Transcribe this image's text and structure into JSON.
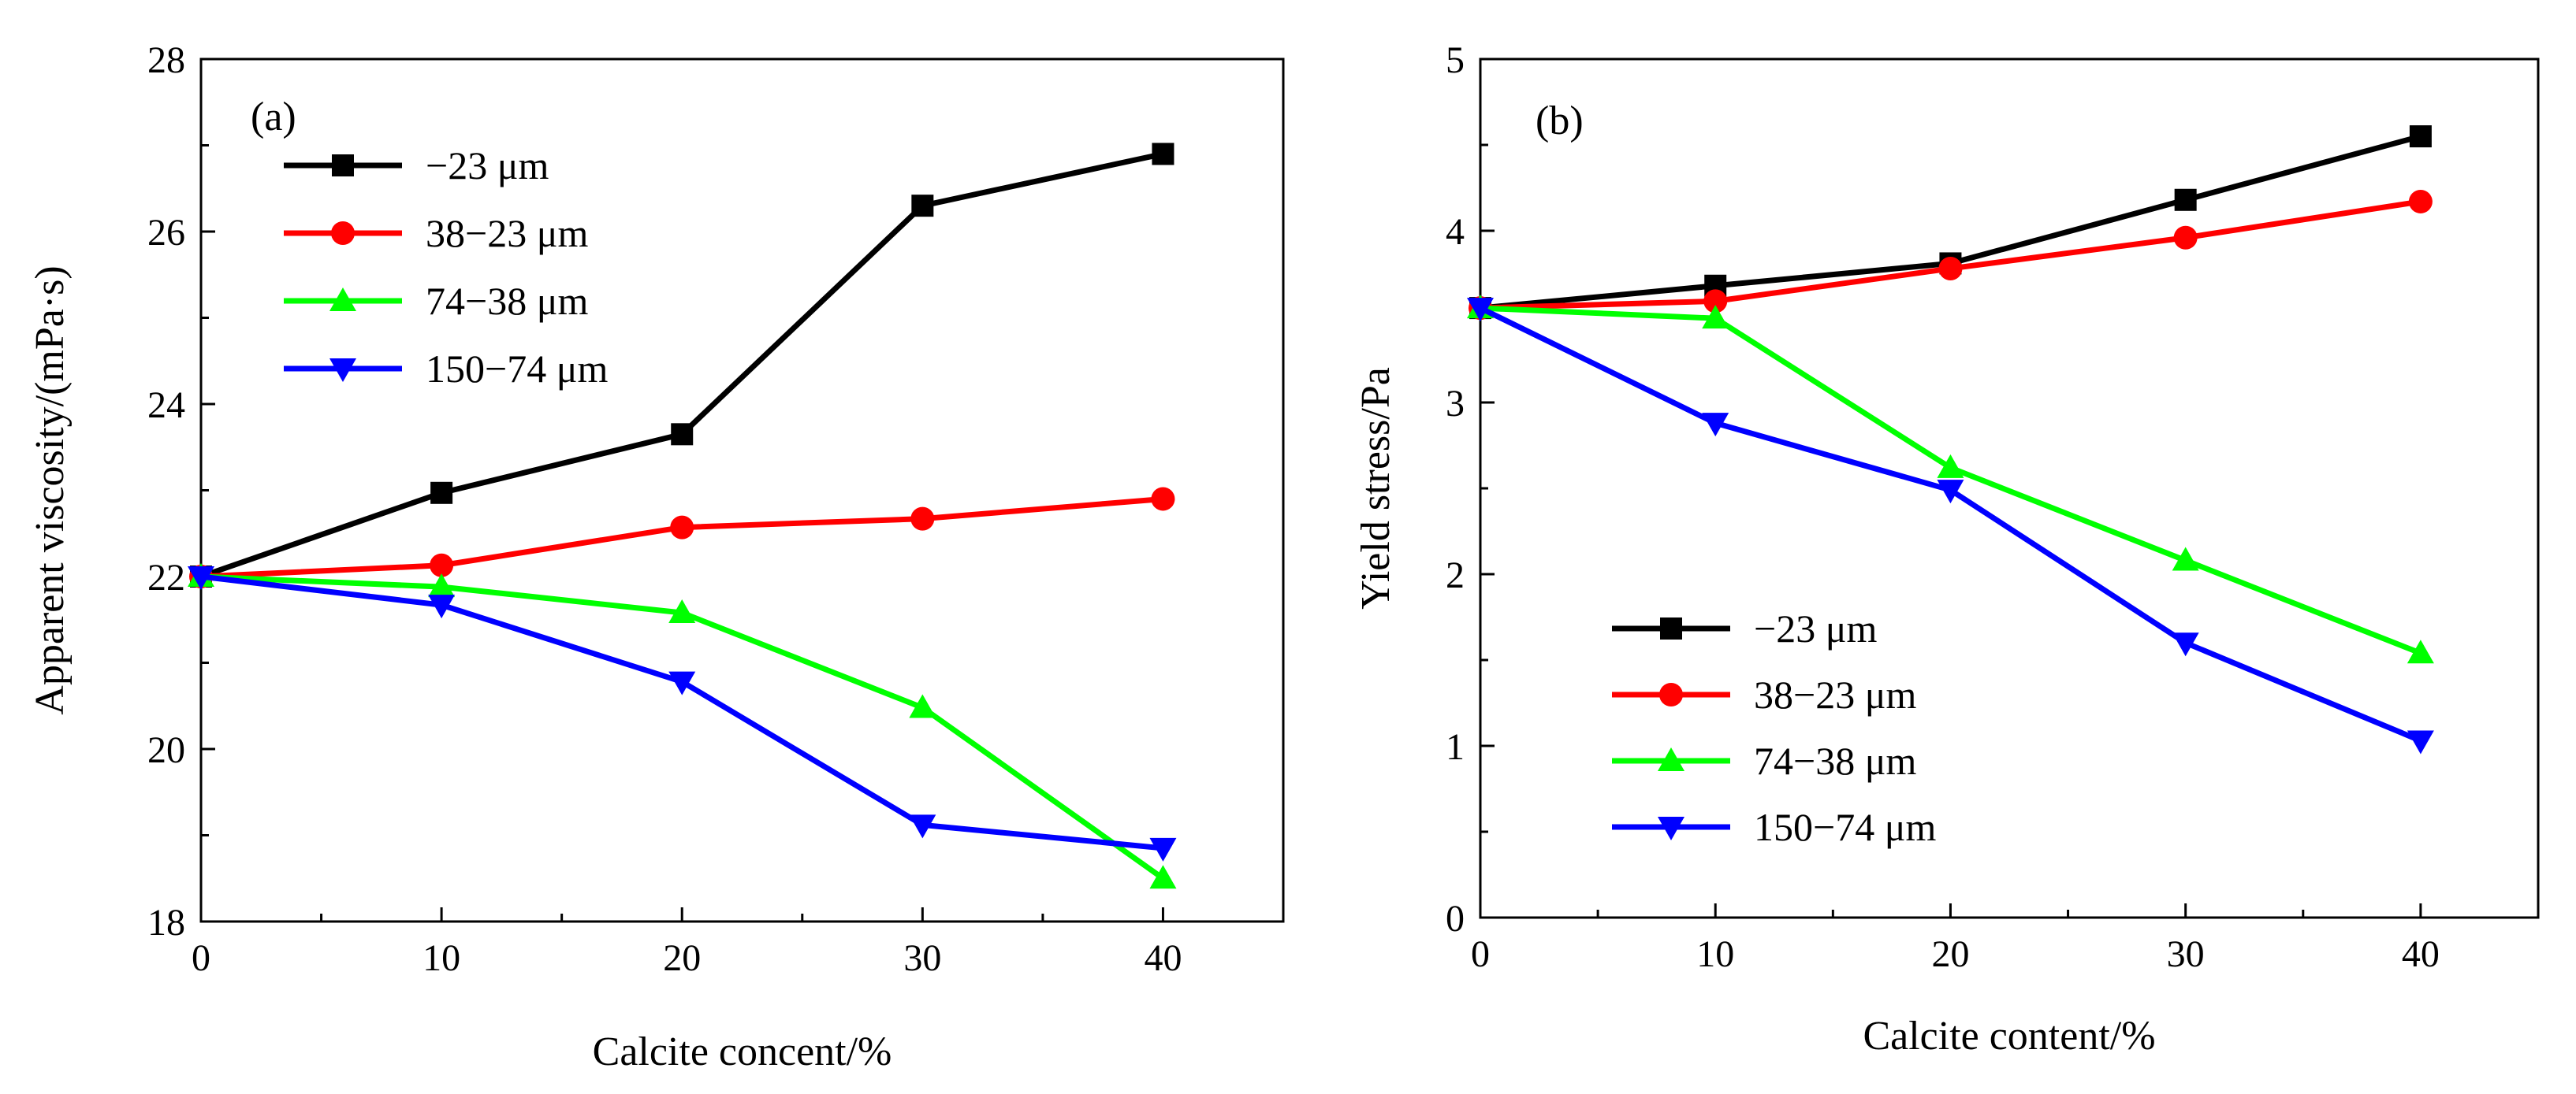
{
  "chart_data": [
    {
      "type": "line",
      "panel_label": "(a)",
      "xlabel": "Calcite concent/%",
      "ylabel": "Apparent viscosity/(mPa·s)",
      "xlim": [
        0,
        45
      ],
      "ylim": [
        18,
        28
      ],
      "xticks": [
        0,
        10,
        20,
        30,
        40
      ],
      "xminor": [
        5,
        15,
        25,
        35
      ],
      "yticks": [
        18,
        20,
        22,
        24,
        26,
        28
      ],
      "yminor": [
        19,
        21,
        23,
        25,
        27
      ],
      "legend_position": "top-left",
      "x": [
        0,
        10,
        20,
        30,
        40
      ],
      "series": [
        {
          "name": "−23 μm",
          "color": "#000000",
          "marker": "square",
          "values": [
            22.0,
            22.97,
            23.65,
            26.3,
            26.9
          ]
        },
        {
          "name": "38−23 μm",
          "color": "#ff0000",
          "marker": "circle",
          "values": [
            22.0,
            22.13,
            22.57,
            22.67,
            22.9
          ]
        },
        {
          "name": "74−38 μm",
          "color": "#00ff00",
          "marker": "triangle-up",
          "values": [
            22.0,
            21.88,
            21.58,
            20.48,
            18.5
          ]
        },
        {
          "name": "150−74 μm",
          "color": "#0000ff",
          "marker": "triangle-down",
          "values": [
            22.0,
            21.67,
            20.78,
            19.12,
            18.85
          ]
        }
      ]
    },
    {
      "type": "line",
      "panel_label": "(b)",
      "xlabel": "Calcite content/%",
      "ylabel": "Yield stress/Pa",
      "xlim": [
        0,
        45
      ],
      "ylim": [
        0,
        5
      ],
      "xticks": [
        0,
        10,
        20,
        30,
        40
      ],
      "xminor": [
        5,
        15,
        25,
        35
      ],
      "yticks": [
        0,
        1,
        2,
        3,
        4,
        5
      ],
      "yminor": [
        0.5,
        1.5,
        2.5,
        3.5,
        4.5
      ],
      "legend_position": "bottom-left",
      "x": [
        0,
        10,
        20,
        30,
        40
      ],
      "series": [
        {
          "name": "−23 μm",
          "color": "#000000",
          "marker": "square",
          "values": [
            3.55,
            3.68,
            3.81,
            4.18,
            4.55
          ]
        },
        {
          "name": "38−23 μm",
          "color": "#ff0000",
          "marker": "circle",
          "values": [
            3.55,
            3.59,
            3.78,
            3.96,
            4.17
          ]
        },
        {
          "name": "74−38 μm",
          "color": "#00ff00",
          "marker": "triangle-up",
          "values": [
            3.55,
            3.49,
            2.62,
            2.08,
            1.54
          ]
        },
        {
          "name": "150−74 μm",
          "color": "#0000ff",
          "marker": "triangle-down",
          "values": [
            3.55,
            2.88,
            2.49,
            1.6,
            1.03
          ]
        }
      ]
    }
  ]
}
